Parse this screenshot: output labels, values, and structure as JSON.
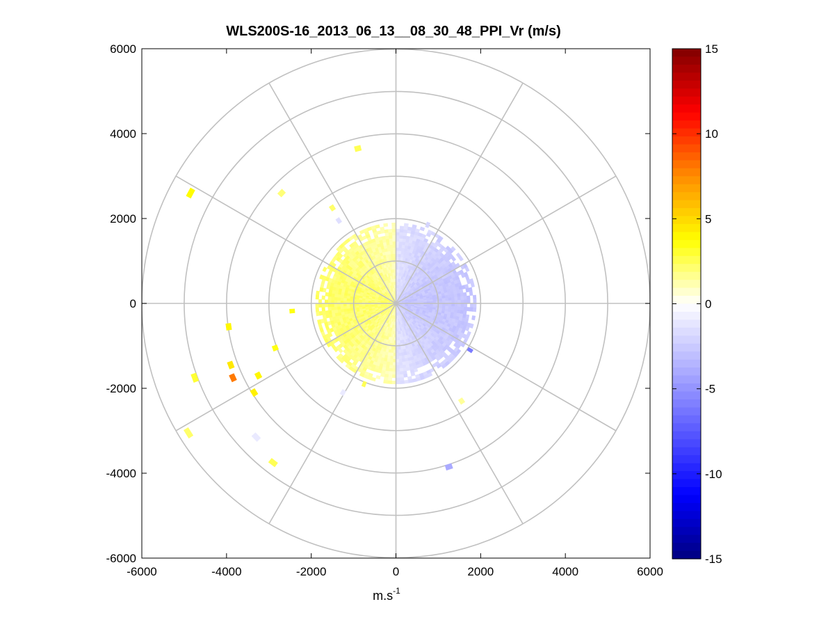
{
  "chart_data": {
    "type": "ppi_polar_scan",
    "title": "WLS200S-16_2013_06_13__08_30_48_PPI_Vr (m/s)",
    "xlabel": "m.s",
    "xlabel_superscript": "-1",
    "xlim": [
      -6000,
      6000
    ],
    "ylim": [
      -6000,
      6000
    ],
    "x_ticks": [
      "-6000",
      "-4000",
      "-2000",
      "0",
      "2000",
      "4000",
      "6000"
    ],
    "y_ticks": [
      "6000",
      "4000",
      "2000",
      "0",
      "-2000",
      "-4000",
      "-6000"
    ],
    "polar_grid": {
      "range_rings": [
        1000,
        2000,
        3000,
        4000,
        5000,
        6000
      ],
      "spoke_angles_deg": [
        0,
        30,
        60,
        90,
        120,
        150,
        180,
        210,
        240,
        270,
        300,
        330
      ],
      "color": "#c0c0c0"
    },
    "colorbar": {
      "min": -15,
      "max": 15,
      "tick_labels": [
        "15",
        "10",
        "5",
        "0",
        "-5",
        "-10",
        "-15"
      ],
      "colors": [
        "#000080",
        "#0000ff",
        "#5a5aff",
        "#b0b0ff",
        "#ffffff",
        "#ffff00",
        "#ff8c00",
        "#ff0000",
        "#800000"
      ]
    },
    "velocity_field": {
      "max_range": 1900,
      "east_half_value": -2.5,
      "west_half_value": 2.0
    },
    "scattered_returns": [
      {
        "x": -900,
        "y": 3650,
        "v": 2.5
      },
      {
        "x": -2700,
        "y": 2600,
        "v": 2.0
      },
      {
        "x": -1500,
        "y": 2250,
        "v": 2.2
      },
      {
        "x": -4850,
        "y": 2600,
        "v": 3.8
      },
      {
        "x": -1350,
        "y": 1950,
        "v": -1.5
      },
      {
        "x": -2450,
        "y": -180,
        "v": 3.5
      },
      {
        "x": -3950,
        "y": -550,
        "v": 4.0
      },
      {
        "x": -2850,
        "y": -1050,
        "v": 3.5
      },
      {
        "x": -3900,
        "y": -1450,
        "v": 4.5
      },
      {
        "x": -3850,
        "y": -1750,
        "v": 8.0
      },
      {
        "x": -3250,
        "y": -1700,
        "v": 4.0
      },
      {
        "x": -3350,
        "y": -2100,
        "v": 4.2
      },
      {
        "x": -4750,
        "y": -1750,
        "v": 3.0
      },
      {
        "x": -4900,
        "y": -3050,
        "v": 2.2
      },
      {
        "x": -3300,
        "y": -3150,
        "v": -1.0
      },
      {
        "x": -2900,
        "y": -3750,
        "v": 2.5
      },
      {
        "x": -1250,
        "y": -2100,
        "v": -1.0
      },
      {
        "x": -750,
        "y": -1900,
        "v": 2.5
      },
      {
        "x": 1550,
        "y": -2300,
        "v": 1.5
      },
      {
        "x": 1250,
        "y": -3850,
        "v": -4.0
      },
      {
        "x": 1750,
        "y": -1100,
        "v": -6.0
      },
      {
        "x": 750,
        "y": 1850,
        "v": -2.0
      }
    ]
  }
}
